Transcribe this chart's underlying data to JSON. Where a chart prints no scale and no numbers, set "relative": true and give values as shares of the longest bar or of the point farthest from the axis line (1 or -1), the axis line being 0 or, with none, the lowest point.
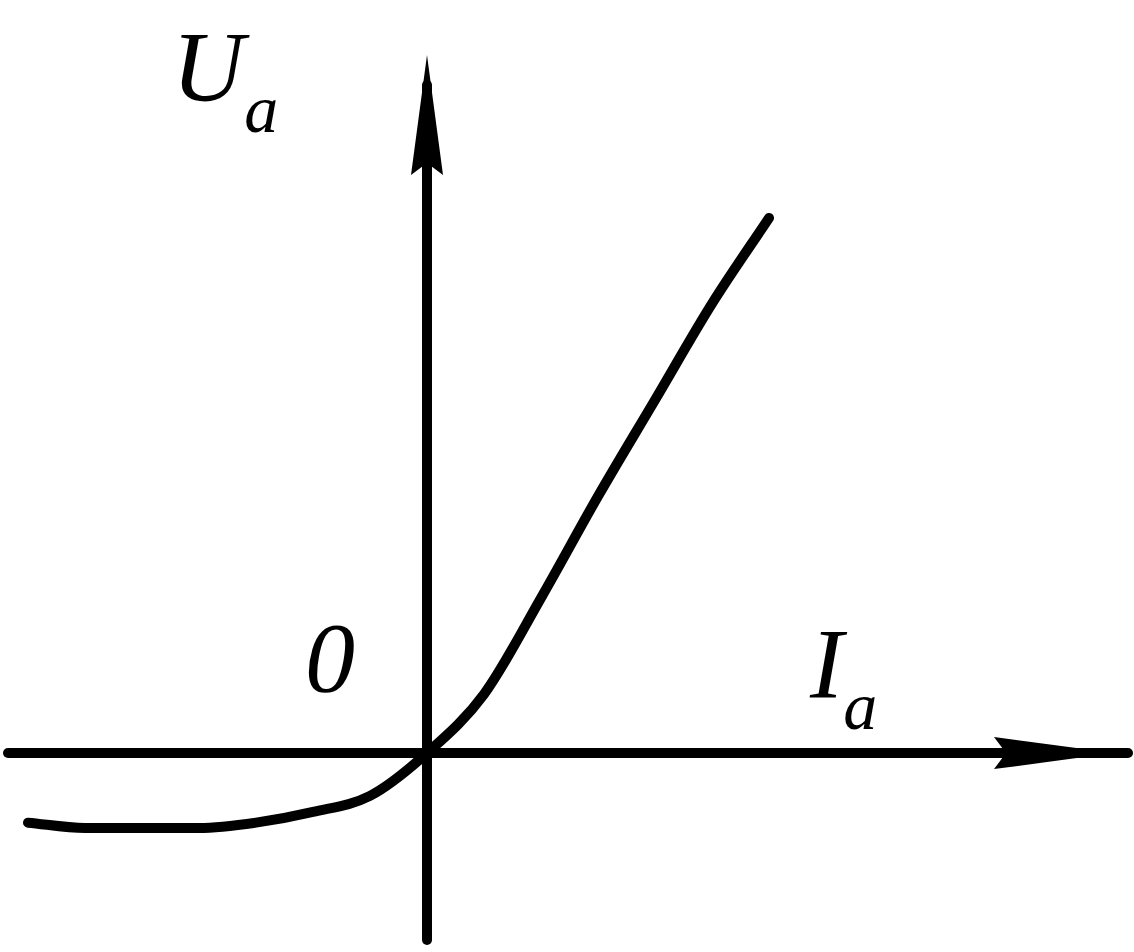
{
  "chart_data": {
    "type": "line",
    "relative": true,
    "xlabel": "I$_{a}$",
    "ylabel": "U$_{a}$",
    "annotations": [
      "0"
    ],
    "color": "#000000",
    "categories": [
      null,
      null,
      null,
      null,
      null,
      null,
      null,
      null,
      null,
      null,
      null,
      null,
      null,
      null
    ],
    "values": [
      -0.13,
      -0.14,
      -0.14,
      -0.14,
      -0.13,
      -0.11,
      -0.08,
      0,
      0.11,
      0.29,
      0.48,
      0.66,
      0.84,
      1
    ]
  }
}
